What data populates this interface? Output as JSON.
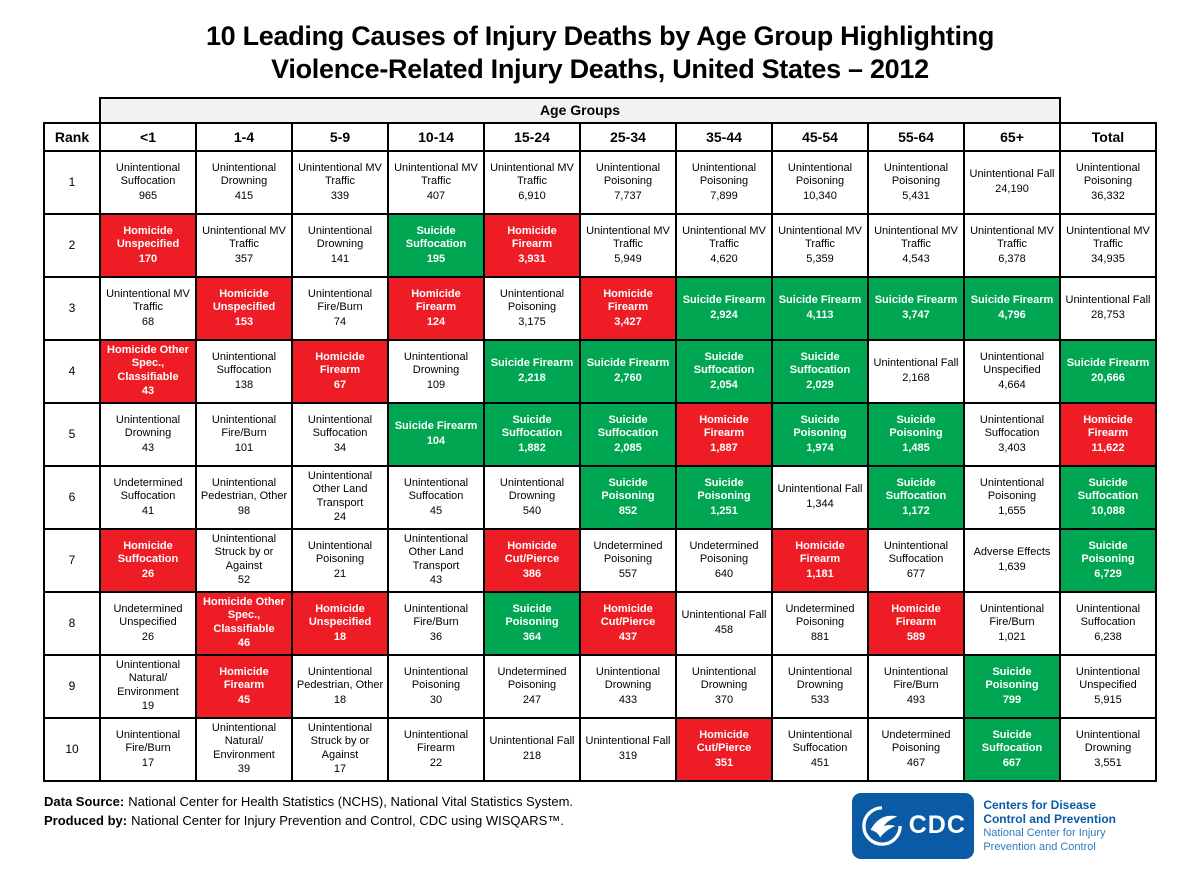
{
  "title": {
    "line1": "10 Leading Causes of Injury Deaths by Age Group Highlighting",
    "line2": "Violence-Related Injury Deaths, United States – 2012"
  },
  "colors": {
    "highlight_red": "#ee1c25",
    "highlight_green": "#00a651",
    "header_gray": "#f2f2f2",
    "logo_blue": "#0b5aa5"
  },
  "chart_data": {
    "type": "table",
    "title": "10 Leading Causes of Injury Deaths by Age Group Highlighting Violence-Related Injury Deaths, United States – 2012",
    "group_header": "Age Groups",
    "columns": [
      "Rank",
      "<1",
      "1-4",
      "5-9",
      "10-14",
      "15-24",
      "25-34",
      "35-44",
      "45-54",
      "55-64",
      "65+",
      "Total"
    ],
    "cells_schema": [
      "cause",
      "deaths",
      "highlight: w=white r=red(homicide) g=green(suicide)"
    ],
    "rows": [
      {
        "rank": "1",
        "cells": [
          [
            "Unintentional Suffocation",
            "965",
            "w"
          ],
          [
            "Unintentional Drowning",
            "415",
            "w"
          ],
          [
            "Unintentional MV Traffic",
            "339",
            "w"
          ],
          [
            "Unintentional MV Traffic",
            "407",
            "w"
          ],
          [
            "Unintentional MV Traffic",
            "6,910",
            "w"
          ],
          [
            "Unintentional Poisoning",
            "7,737",
            "w"
          ],
          [
            "Unintentional Poisoning",
            "7,899",
            "w"
          ],
          [
            "Unintentional Poisoning",
            "10,340",
            "w"
          ],
          [
            "Unintentional Poisoning",
            "5,431",
            "w"
          ],
          [
            "Unintentional Fall",
            "24,190",
            "w"
          ],
          [
            "Unintentional Poisoning",
            "36,332",
            "w"
          ]
        ]
      },
      {
        "rank": "2",
        "cells": [
          [
            "Homicide Unspecified",
            "170",
            "r"
          ],
          [
            "Unintentional MV Traffic",
            "357",
            "w"
          ],
          [
            "Unintentional Drowning",
            "141",
            "w"
          ],
          [
            "Suicide Suffocation",
            "195",
            "g"
          ],
          [
            "Homicide Firearm",
            "3,931",
            "r"
          ],
          [
            "Unintentional MV Traffic",
            "5,949",
            "w"
          ],
          [
            "Unintentional MV Traffic",
            "4,620",
            "w"
          ],
          [
            "Unintentional MV Traffic",
            "5,359",
            "w"
          ],
          [
            "Unintentional MV Traffic",
            "4,543",
            "w"
          ],
          [
            "Unintentional MV Traffic",
            "6,378",
            "w"
          ],
          [
            "Unintentional MV Traffic",
            "34,935",
            "w"
          ]
        ]
      },
      {
        "rank": "3",
        "cells": [
          [
            "Unintentional MV Traffic",
            "68",
            "w"
          ],
          [
            "Homicide Unspecified",
            "153",
            "r"
          ],
          [
            "Unintentional Fire/Burn",
            "74",
            "w"
          ],
          [
            "Homicide Firearm",
            "124",
            "r"
          ],
          [
            "Unintentional Poisoning",
            "3,175",
            "w"
          ],
          [
            "Homicide Firearm",
            "3,427",
            "r"
          ],
          [
            "Suicide Firearm",
            "2,924",
            "g"
          ],
          [
            "Suicide Firearm",
            "4,113",
            "g"
          ],
          [
            "Suicide Firearm",
            "3,747",
            "g"
          ],
          [
            "Suicide Firearm",
            "4,796",
            "g"
          ],
          [
            "Unintentional Fall",
            "28,753",
            "w"
          ]
        ]
      },
      {
        "rank": "4",
        "cells": [
          [
            "Homicide Other Spec., Classifiable",
            "43",
            "r"
          ],
          [
            "Unintentional Suffocation",
            "138",
            "w"
          ],
          [
            "Homicide Firearm",
            "67",
            "r"
          ],
          [
            "Unintentional Drowning",
            "109",
            "w"
          ],
          [
            "Suicide Firearm",
            "2,218",
            "g"
          ],
          [
            "Suicide Firearm",
            "2,760",
            "g"
          ],
          [
            "Suicide Suffocation",
            "2,054",
            "g"
          ],
          [
            "Suicide Suffocation",
            "2,029",
            "g"
          ],
          [
            "Unintentional Fall",
            "2,168",
            "w"
          ],
          [
            "Unintentional Unspecified",
            "4,664",
            "w"
          ],
          [
            "Suicide Firearm",
            "20,666",
            "g"
          ]
        ]
      },
      {
        "rank": "5",
        "cells": [
          [
            "Unintentional Drowning",
            "43",
            "w"
          ],
          [
            "Unintentional Fire/Burn",
            "101",
            "w"
          ],
          [
            "Unintentional Suffocation",
            "34",
            "w"
          ],
          [
            "Suicide Firearm",
            "104",
            "g"
          ],
          [
            "Suicide Suffocation",
            "1,882",
            "g"
          ],
          [
            "Suicide Suffocation",
            "2,085",
            "g"
          ],
          [
            "Homicide Firearm",
            "1,887",
            "r"
          ],
          [
            "Suicide Poisoning",
            "1,974",
            "g"
          ],
          [
            "Suicide Poisoning",
            "1,485",
            "g"
          ],
          [
            "Unintentional Suffocation",
            "3,403",
            "w"
          ],
          [
            "Homicide Firearm",
            "11,622",
            "r"
          ]
        ]
      },
      {
        "rank": "6",
        "cells": [
          [
            "Undetermined Suffocation",
            "41",
            "w"
          ],
          [
            "Unintentional Pedestrian, Other",
            "98",
            "w"
          ],
          [
            "Unintentional Other Land Transport",
            "24",
            "w"
          ],
          [
            "Unintentional Suffocation",
            "45",
            "w"
          ],
          [
            "Unintentional Drowning",
            "540",
            "w"
          ],
          [
            "Suicide Poisoning",
            "852",
            "g"
          ],
          [
            "Suicide Poisoning",
            "1,251",
            "g"
          ],
          [
            "Unintentional Fall",
            "1,344",
            "w"
          ],
          [
            "Suicide Suffocation",
            "1,172",
            "g"
          ],
          [
            "Unintentional Poisoning",
            "1,655",
            "w"
          ],
          [
            "Suicide Suffocation",
            "10,088",
            "g"
          ]
        ]
      },
      {
        "rank": "7",
        "cells": [
          [
            "Homicide Suffocation",
            "26",
            "r"
          ],
          [
            "Unintentional Struck by or Against",
            "52",
            "w"
          ],
          [
            "Unintentional Poisoning",
            "21",
            "w"
          ],
          [
            "Unintentional Other Land Transport",
            "43",
            "w"
          ],
          [
            "Homicide Cut/Pierce",
            "386",
            "r"
          ],
          [
            "Undetermined Poisoning",
            "557",
            "w"
          ],
          [
            "Undetermined Poisoning",
            "640",
            "w"
          ],
          [
            "Homicide Firearm",
            "1,181",
            "r"
          ],
          [
            "Unintentional Suffocation",
            "677",
            "w"
          ],
          [
            "Adverse Effects",
            "1,639",
            "w"
          ],
          [
            "Suicide Poisoning",
            "6,729",
            "g"
          ]
        ]
      },
      {
        "rank": "8",
        "cells": [
          [
            "Undetermined Unspecified",
            "26",
            "w"
          ],
          [
            "Homicide Other Spec., Classifiable",
            "46",
            "r"
          ],
          [
            "Homicide Unspecified",
            "18",
            "r"
          ],
          [
            "Unintentional Fire/Burn",
            "36",
            "w"
          ],
          [
            "Suicide Poisoning",
            "364",
            "g"
          ],
          [
            "Homicide Cut/Pierce",
            "437",
            "r"
          ],
          [
            "Unintentional Fall",
            "458",
            "w"
          ],
          [
            "Undetermined Poisoning",
            "881",
            "w"
          ],
          [
            "Homicide Firearm",
            "589",
            "r"
          ],
          [
            "Unintentional Fire/Burn",
            "1,021",
            "w"
          ],
          [
            "Unintentional Suffocation",
            "6,238",
            "w"
          ]
        ]
      },
      {
        "rank": "9",
        "cells": [
          [
            "Unintentional Natural/ Environment",
            "19",
            "w"
          ],
          [
            "Homicide Firearm",
            "45",
            "r"
          ],
          [
            "Unintentional Pedestrian, Other",
            "18",
            "w"
          ],
          [
            "Unintentional Poisoning",
            "30",
            "w"
          ],
          [
            "Undetermined Poisoning",
            "247",
            "w"
          ],
          [
            "Unintentional Drowning",
            "433",
            "w"
          ],
          [
            "Unintentional Drowning",
            "370",
            "w"
          ],
          [
            "Unintentional Drowning",
            "533",
            "w"
          ],
          [
            "Unintentional Fire/Burn",
            "493",
            "w"
          ],
          [
            "Suicide Poisoning",
            "799",
            "g"
          ],
          [
            "Unintentional Unspecified",
            "5,915",
            "w"
          ]
        ]
      },
      {
        "rank": "10",
        "cells": [
          [
            "Unintentional Fire/Burn",
            "17",
            "w"
          ],
          [
            "Unintentional Natural/ Environment",
            "39",
            "w"
          ],
          [
            "Unintentional Struck by or Against",
            "17",
            "w"
          ],
          [
            "Unintentional Firearm",
            "22",
            "w"
          ],
          [
            "Unintentional Fall",
            "218",
            "w"
          ],
          [
            "Unintentional Fall",
            "319",
            "w"
          ],
          [
            "Homicide Cut/Pierce",
            "351",
            "r"
          ],
          [
            "Unintentional Suffocation",
            "451",
            "w"
          ],
          [
            "Undetermined Poisoning",
            "467",
            "w"
          ],
          [
            "Suicide Suffocation",
            "667",
            "g"
          ],
          [
            "Unintentional Drowning",
            "3,551",
            "w"
          ]
        ]
      }
    ]
  },
  "footnotes": [
    {
      "label": "Data Source:",
      "text": "National Center for Health Statistics (NCHS), National Vital Statistics System."
    },
    {
      "label": "Produced by:",
      "text": "National Center for Injury Prevention and Control, CDC using WISQARS™."
    }
  ],
  "logo": {
    "acronym": "CDC",
    "org_line1": "Centers for Disease",
    "org_line2": "Control and Prevention",
    "sub_line1": "National Center for Injury",
    "sub_line2": "Prevention and Control"
  }
}
